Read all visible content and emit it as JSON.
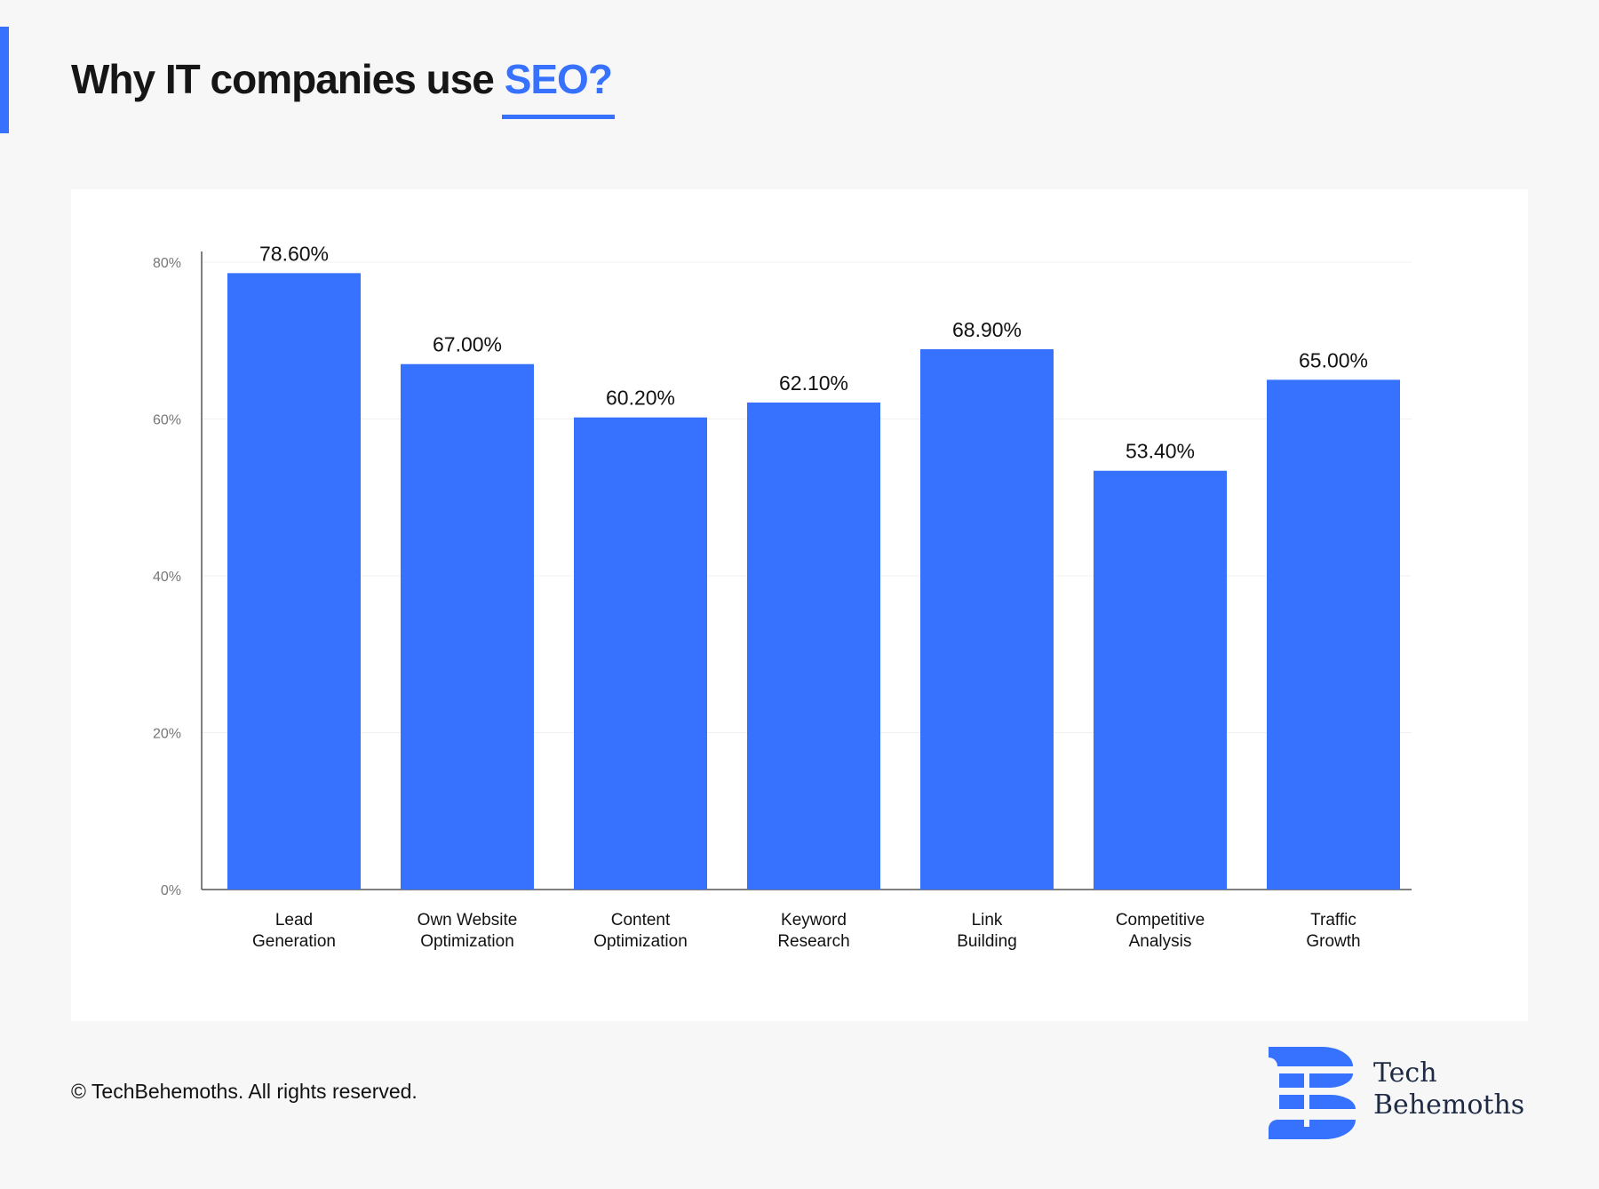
{
  "title": {
    "prefix": "Why IT companies use ",
    "highlight": "SEO?"
  },
  "footer": "© TechBehemoths. All rights reserved.",
  "logo": {
    "line1": "Tech",
    "line2": "Behemoths"
  },
  "colors": {
    "accent": "#3772ff",
    "bar": "#3772ff",
    "text": "#111111",
    "tick": "#777777"
  },
  "chart_data": {
    "type": "bar",
    "categories": [
      [
        "Lead",
        "Generation"
      ],
      [
        "Own Website",
        "Optimization"
      ],
      [
        "Content",
        "Optimization"
      ],
      [
        "Keyword",
        "Research"
      ],
      [
        "Link",
        "Building"
      ],
      [
        "Competitive",
        "Analysis"
      ],
      [
        "Traffic",
        "Growth"
      ]
    ],
    "values": [
      78.6,
      67.0,
      60.2,
      62.1,
      68.9,
      53.4,
      65.0
    ],
    "data_labels": [
      "78.60%",
      "67.00%",
      "60.20%",
      "62.10%",
      "68.90%",
      "53.40%",
      "65.00%"
    ],
    "yticks": [
      0,
      20,
      40,
      60,
      80
    ],
    "ytick_labels": [
      "0%",
      "20%",
      "40%",
      "60%",
      "80%"
    ],
    "ylim": [
      0,
      80
    ],
    "grid": true,
    "xlabel": "",
    "ylabel": ""
  }
}
